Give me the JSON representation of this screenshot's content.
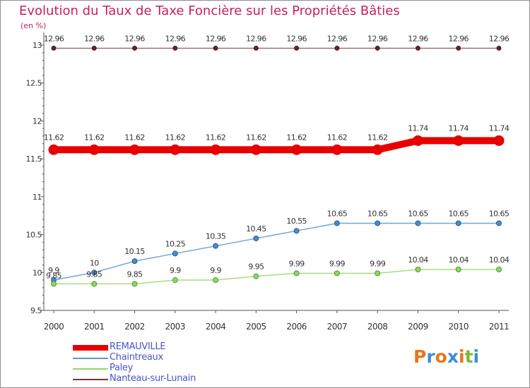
{
  "title": "Evolution du Taux de Taxe Foncière sur les Propriétés Bâties",
  "unit_label": "(en %)",
  "logo": {
    "letters": [
      "P",
      "r",
      "o",
      "x",
      "i",
      "t",
      "i"
    ],
    "colors": [
      "#e8761a",
      "#3b8ed8",
      "#e8761a",
      "#3b8ed8",
      "#e8761a",
      "#7ab836",
      "#3b8ed8"
    ]
  },
  "chart_data": {
    "type": "line",
    "title": "Evolution du Taux de Taxe Foncière sur les Propriétés Bâties",
    "ylabel": "(en %)",
    "xlabel": "",
    "x": [
      "2000",
      "2001",
      "2002",
      "2003",
      "2004",
      "2005",
      "2006",
      "2007",
      "2008",
      "2009",
      "2010",
      "2011"
    ],
    "ylim": [
      9.5,
      13
    ],
    "yticks": [
      "9.5",
      "10",
      "10.5",
      "11",
      "11.5",
      "12",
      "12.5",
      "13"
    ],
    "grid": false,
    "legend_position": "bottom-left",
    "series": [
      {
        "name": "REMAUVILLE",
        "color": "#e80000",
        "values": [
          11.62,
          11.62,
          11.62,
          11.62,
          11.62,
          11.62,
          11.62,
          11.62,
          11.62,
          11.74,
          11.74,
          11.74
        ],
        "labels": [
          "11.62",
          "11.62",
          "11.62",
          "11.62",
          "11.62",
          "11.62",
          "11.62",
          "11.62",
          "11.62",
          "11.74",
          "11.74",
          "11.74"
        ]
      },
      {
        "name": "Chaintreaux",
        "color": "#5c9ad0",
        "values": [
          9.9,
          10,
          10.15,
          10.25,
          10.35,
          10.45,
          10.55,
          10.65,
          10.65,
          10.65,
          10.65,
          10.65
        ],
        "labels": [
          "9.9",
          "10",
          "10.15",
          "10.25",
          "10.35",
          "10.45",
          "10.55",
          "10.65",
          "10.65",
          "10.65",
          "10.65",
          "10.65"
        ]
      },
      {
        "name": "Paley",
        "color": "#94d66a",
        "values": [
          9.85,
          9.85,
          9.85,
          9.9,
          9.9,
          9.95,
          9.99,
          9.99,
          9.99,
          10.04,
          10.04,
          10.04
        ],
        "labels": [
          "9.85",
          "9.85",
          "9.85",
          "9.9",
          "9.9",
          "9.95",
          "9.99",
          "9.99",
          "9.99",
          "10.04",
          "10.04",
          "10.04"
        ]
      },
      {
        "name": "Nanteau-sur-Lunain",
        "color": "#7a3434",
        "values": [
          12.96,
          12.96,
          12.96,
          12.96,
          12.96,
          12.96,
          12.96,
          12.96,
          12.96,
          12.96,
          12.96,
          12.96
        ],
        "labels": [
          "12.96",
          "12.96",
          "12.96",
          "12.96",
          "12.96",
          "12.96",
          "12.96",
          "12.96",
          "12.96",
          "12.96",
          "12.96",
          "12.96"
        ]
      }
    ]
  }
}
